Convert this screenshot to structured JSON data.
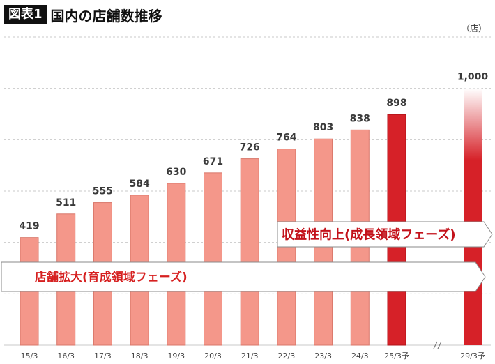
{
  "header": {
    "badge": "図表1",
    "title": "国内の店舗数推移",
    "unit": "（店）"
  },
  "chart_data": {
    "type": "bar",
    "categories": [
      "15/3",
      "16/3",
      "17/3",
      "18/3",
      "19/3",
      "20/3",
      "21/3",
      "22/3",
      "23/3",
      "24/3",
      "25/3予",
      "29/3予"
    ],
    "values": [
      419,
      511,
      555,
      584,
      630,
      671,
      726,
      764,
      803,
      838,
      898,
      1000
    ],
    "value_labels": [
      "419",
      "511",
      "555",
      "584",
      "630",
      "671",
      "726",
      "764",
      "803",
      "838",
      "898",
      "1,000"
    ],
    "ylim": [
      0,
      1200
    ],
    "grid": true,
    "axis_break_after": "25/3予",
    "phases": [
      {
        "label": "店舗拡大(育成領域フェーズ)",
        "color": "#d62020"
      },
      {
        "label": "収益性向上(成長領域フェーズ)",
        "color": "#c3111a"
      }
    ],
    "colors": {
      "actual": "#f4978a",
      "forecast": "#d62128",
      "forecast_outline": "#b01218"
    }
  }
}
